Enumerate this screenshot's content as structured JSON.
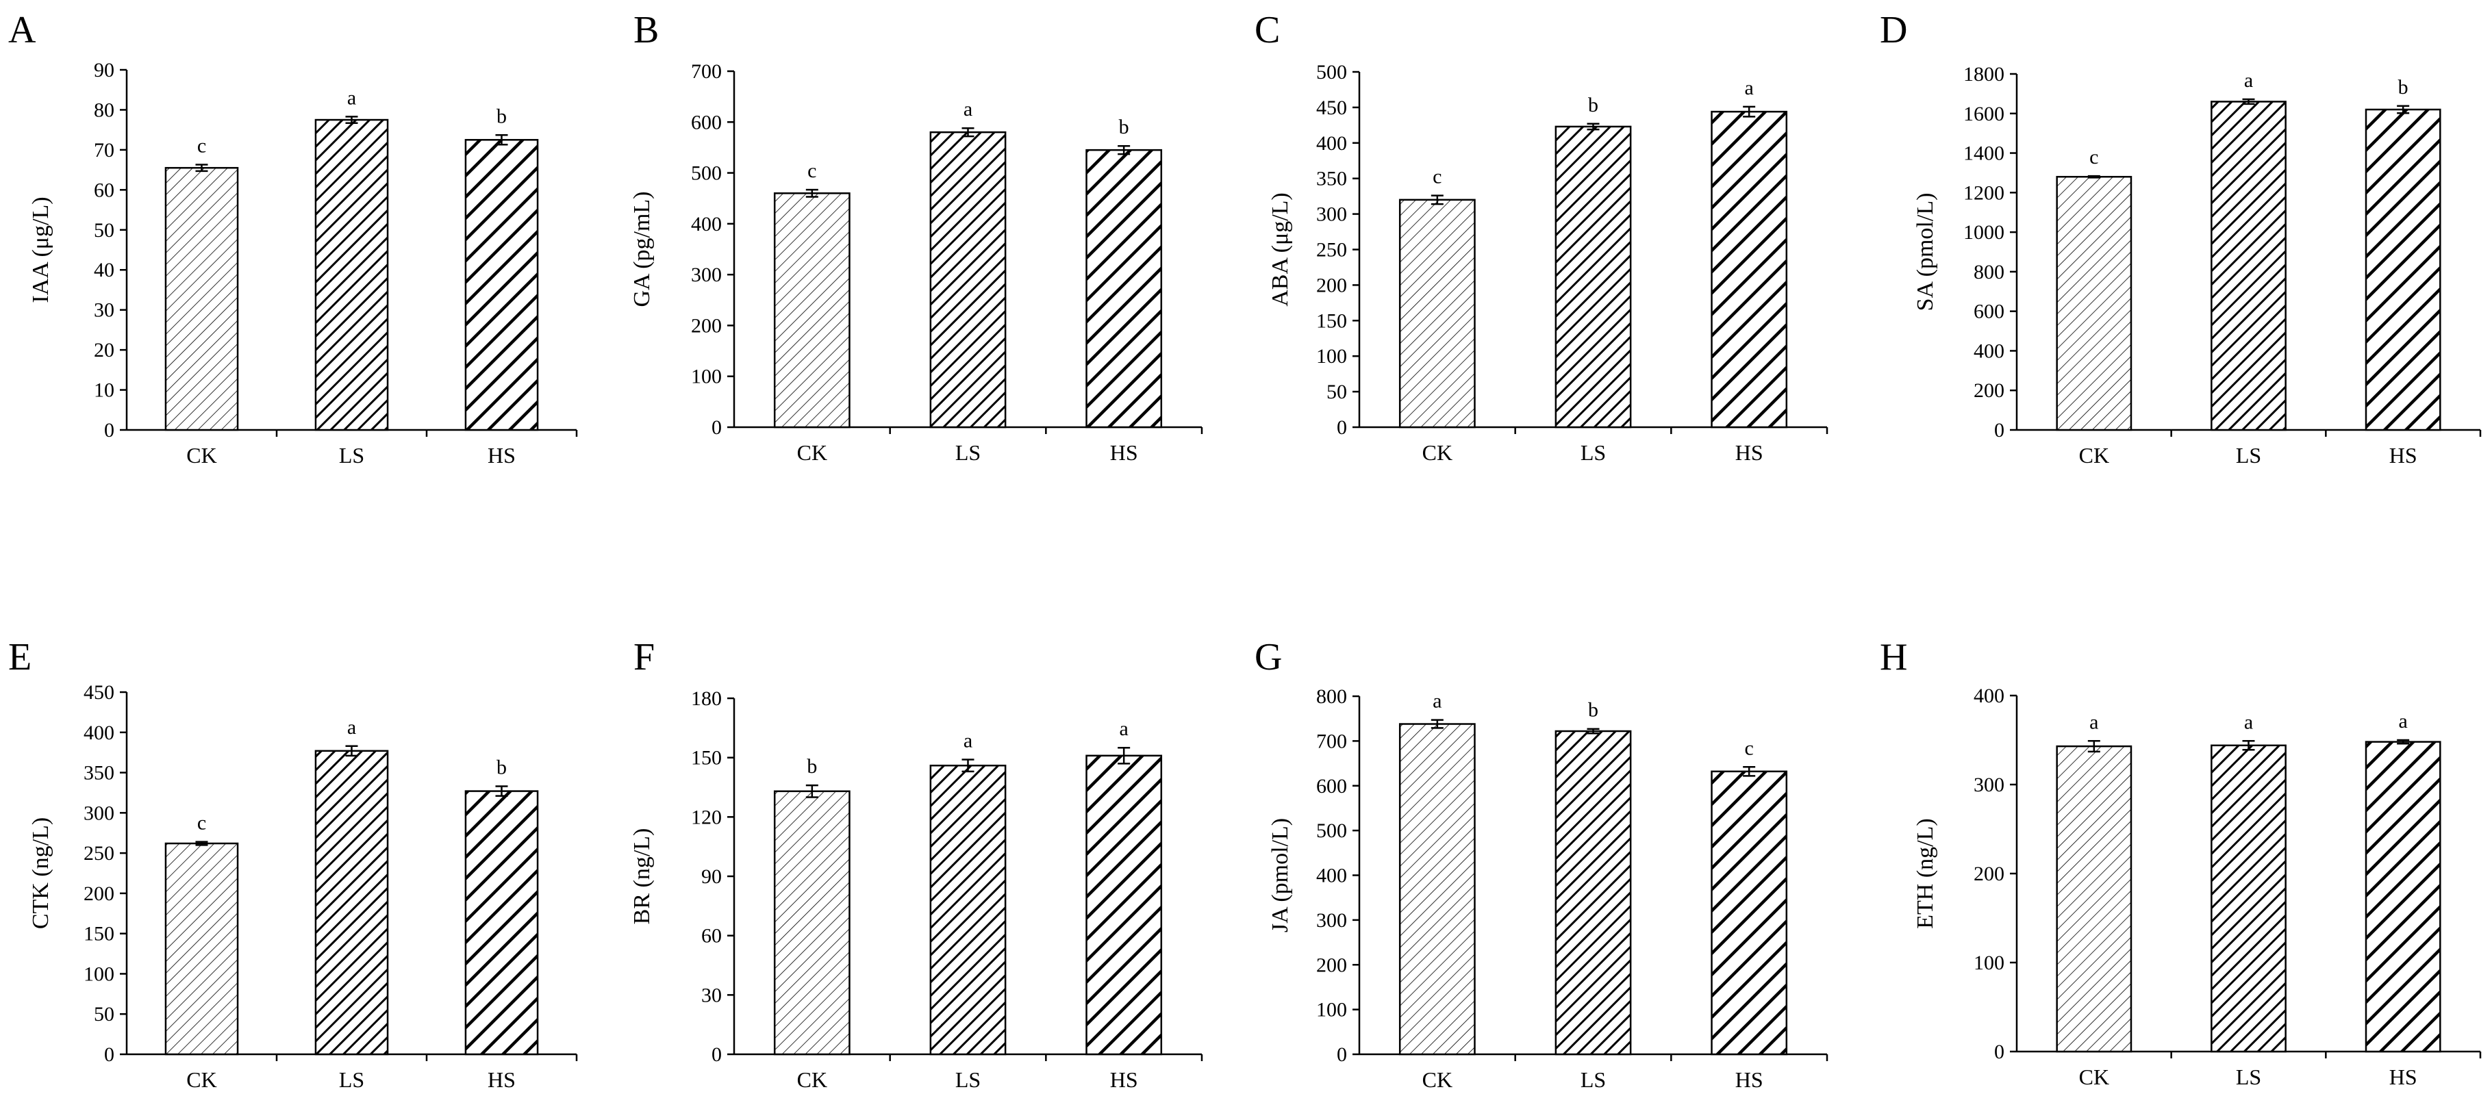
{
  "chart_data": [
    {
      "type": "bar",
      "panel": "A",
      "categories": [
        "CK",
        "LS",
        "HS"
      ],
      "values": [
        65.5,
        77.5,
        72.5
      ],
      "errors": [
        0.8,
        0.8,
        1.2
      ],
      "significance": [
        "c",
        "a",
        "b"
      ],
      "ylabel": "IAA (μg/L)",
      "ylim": [
        0,
        90
      ],
      "yticks": [
        "0",
        "10",
        "20",
        "30",
        "40",
        "50",
        "60",
        "70",
        "80",
        "90"
      ]
    },
    {
      "type": "bar",
      "panel": "B",
      "categories": [
        "CK",
        "LS",
        "HS"
      ],
      "values": [
        460,
        580,
        545
      ],
      "errors": [
        7,
        8,
        8
      ],
      "significance": [
        "c",
        "a",
        "b"
      ],
      "ylabel": "GA (pg/mL)",
      "ylim": [
        0,
        700
      ],
      "yticks": [
        "0",
        "100",
        "200",
        "300",
        "400",
        "500",
        "600",
        "700"
      ]
    },
    {
      "type": "bar",
      "panel": "C",
      "categories": [
        "CK",
        "LS",
        "HS"
      ],
      "values": [
        320,
        423,
        444
      ],
      "errors": [
        6,
        4,
        7
      ],
      "significance": [
        "c",
        "b",
        "a"
      ],
      "ylabel": "ABA (μg/L)",
      "ylim": [
        0,
        500
      ],
      "yticks": [
        "0",
        "50",
        "100",
        "150",
        "200",
        "250",
        "300",
        "350",
        "400",
        "450",
        "500"
      ]
    },
    {
      "type": "bar",
      "panel": "D",
      "categories": [
        "CK",
        "LS",
        "HS"
      ],
      "values": [
        1280,
        1660,
        1620
      ],
      "errors": [
        4,
        12,
        18
      ],
      "significance": [
        "c",
        "a",
        "b"
      ],
      "ylabel": "SA (pmol/L)",
      "ylim": [
        0,
        1800
      ],
      "yticks": [
        "0",
        "200",
        "400",
        "600",
        "800",
        "1000",
        "1200",
        "1400",
        "1600",
        "1800"
      ]
    },
    {
      "type": "bar",
      "panel": "E",
      "categories": [
        "CK",
        "LS",
        "HS"
      ],
      "values": [
        262,
        377,
        327
      ],
      "errors": [
        2,
        6,
        6
      ],
      "significance": [
        "c",
        "a",
        "b"
      ],
      "ylabel": "CTK (ng/L)",
      "ylim": [
        0,
        450
      ],
      "yticks": [
        "0",
        "50",
        "100",
        "150",
        "200",
        "250",
        "300",
        "350",
        "400",
        "450"
      ]
    },
    {
      "type": "bar",
      "panel": "F",
      "categories": [
        "CK",
        "LS",
        "HS"
      ],
      "values": [
        133,
        146,
        151
      ],
      "errors": [
        3,
        3,
        4
      ],
      "significance": [
        "b",
        "a",
        "a"
      ],
      "ylabel": "BR (ng/L)",
      "ylim": [
        0,
        180
      ],
      "yticks": [
        "0",
        "30",
        "60",
        "90",
        "120",
        "150",
        "180"
      ]
    },
    {
      "type": "bar",
      "panel": "G",
      "categories": [
        "CK",
        "LS",
        "HS"
      ],
      "values": [
        738,
        722,
        632
      ],
      "errors": [
        9,
        5,
        10
      ],
      "significance": [
        "a",
        "b",
        "c"
      ],
      "ylabel": "JA (pmol/L)",
      "ylim": [
        0,
        800
      ],
      "yticks": [
        "0",
        "100",
        "200",
        "300",
        "400",
        "500",
        "600",
        "700",
        "800"
      ]
    },
    {
      "type": "bar",
      "panel": "H",
      "categories": [
        "CK",
        "LS",
        "HS"
      ],
      "values": [
        343,
        344,
        348
      ],
      "errors": [
        6,
        5,
        2
      ],
      "significance": [
        "a",
        "a",
        "a"
      ],
      "ylabel": "ETH (ng/L)",
      "ylim": [
        0,
        400
      ],
      "yticks": [
        "0",
        "100",
        "200",
        "300",
        "400"
      ]
    }
  ]
}
